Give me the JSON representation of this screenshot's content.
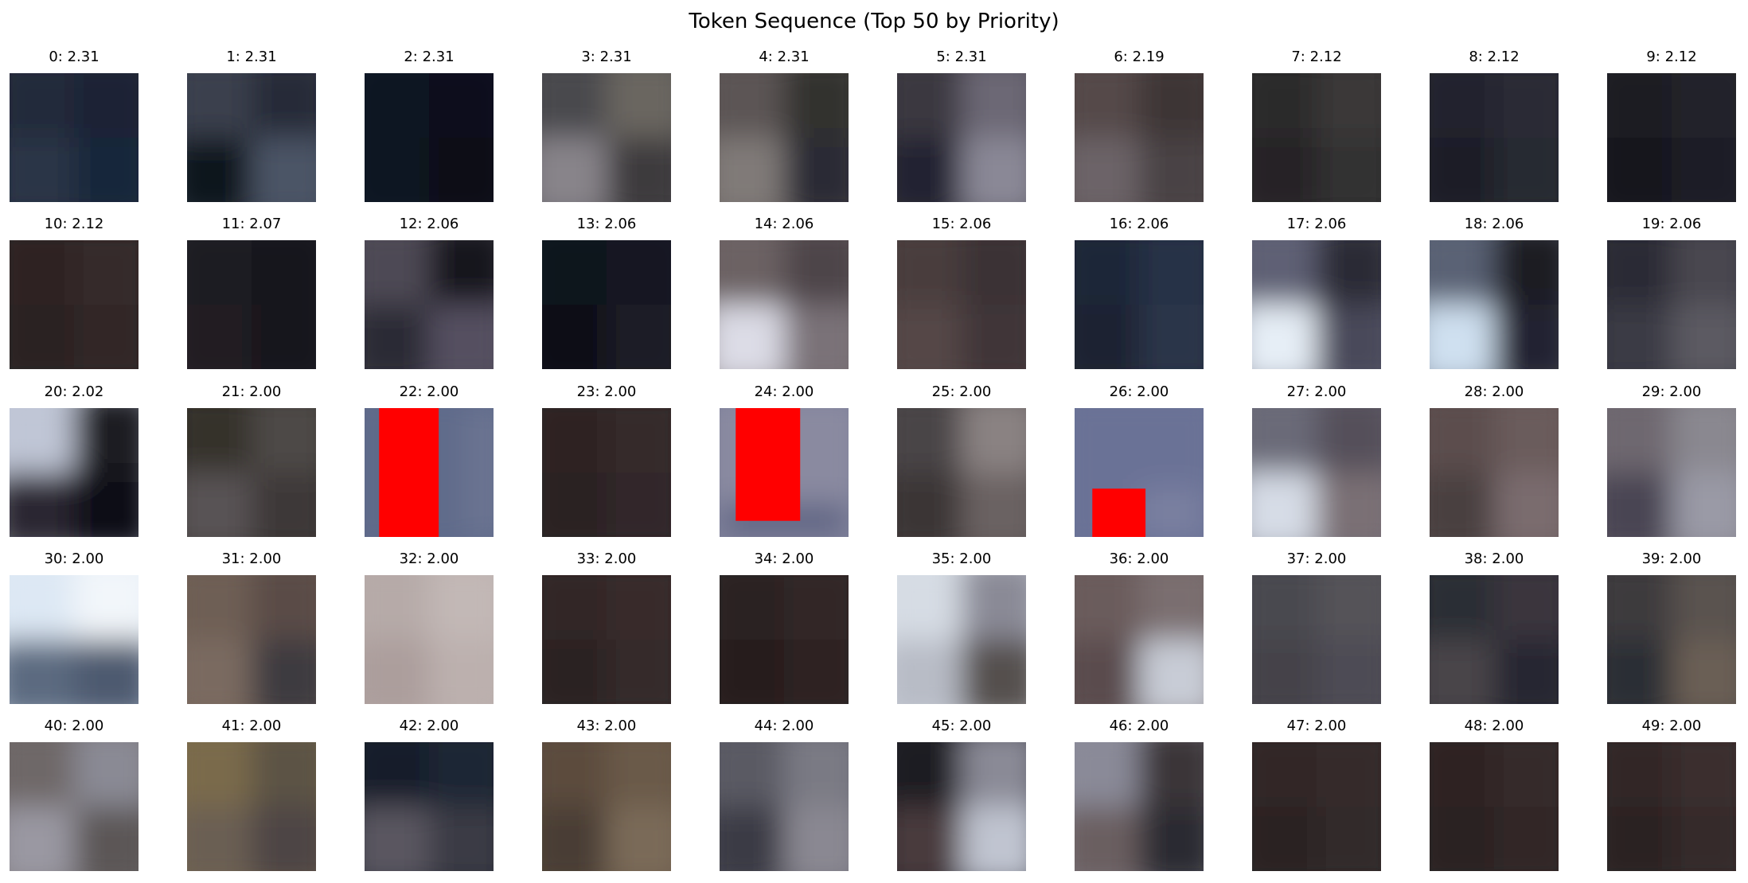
{
  "title": "Token Sequence (Top 50 by Priority)",
  "tokens": [
    {
      "label": "0: 2.31",
      "kind": "blur",
      "colors": [
        "#232a3a",
        "#1a2334",
        "#2c3446",
        "#19263a"
      ]
    },
    {
      "label": "1: 2.31",
      "kind": "blur",
      "colors": [
        "#3a3f4e",
        "#252a38",
        "#0f131c",
        "#4c5566"
      ]
    },
    {
      "label": "2: 2.31",
      "kind": "blur",
      "colors": [
        "#0f1320",
        "#0c101a",
        "#101524",
        "#0a0d16"
      ]
    },
    {
      "label": "3: 2.31",
      "kind": "blur",
      "colors": [
        "#4a4a4e",
        "#6a6660",
        "#88848a",
        "#3c3a3e"
      ]
    },
    {
      "label": "4: 2.31",
      "kind": "blur",
      "colors": [
        "#5c5454",
        "#32302f",
        "#807a78",
        "#2a2a34"
      ]
    },
    {
      "label": "5: 2.31",
      "kind": "blur",
      "colors": [
        "#3a3840",
        "#6c6874",
        "#202432",
        "#8a8896"
      ]
    },
    {
      "label": "6: 2.19",
      "kind": "blur",
      "colors": [
        "#54484a",
        "#3c3436",
        "#6c6468",
        "#4a4244"
      ]
    },
    {
      "label": "7: 2.12",
      "kind": "blur",
      "colors": [
        "#2c2a2c",
        "#3a3838",
        "#262426",
        "#333132"
      ]
    },
    {
      "label": "8: 2.12",
      "kind": "blur",
      "colors": [
        "#20242e",
        "#2c2c34",
        "#1c1e26",
        "#282a30"
      ]
    },
    {
      "label": "9: 2.12",
      "kind": "blur",
      "colors": [
        "#1a1a22",
        "#22202a",
        "#16161c",
        "#1e1e26"
      ]
    },
    {
      "label": "10: 2.12",
      "kind": "blur",
      "colors": [
        "#2e2424",
        "#34292a",
        "#2a2222",
        "#302627"
      ]
    },
    {
      "label": "11: 2.07",
      "kind": "blur",
      "colors": [
        "#1c1a22",
        "#14131a",
        "#221e24",
        "#19171e"
      ]
    },
    {
      "label": "12: 2.06",
      "kind": "blur",
      "colors": [
        "#4e4a54",
        "#12141e",
        "#2a2c36",
        "#545060"
      ]
    },
    {
      "label": "13: 2.06",
      "kind": "blur",
      "colors": [
        "#0e121c",
        "#161822",
        "#0a0d16",
        "#1c1e28"
      ]
    },
    {
      "label": "14: 2.06",
      "kind": "blur",
      "colors": [
        "#6c6264",
        "#4e4448",
        "#dcdce6",
        "#7a7278"
      ]
    },
    {
      "label": "15: 2.06",
      "kind": "blur",
      "colors": [
        "#4a3e3e",
        "#3a3236",
        "#544646",
        "#403638"
      ]
    },
    {
      "label": "16: 2.06",
      "kind": "blur",
      "colors": [
        "#1e2838",
        "#263246",
        "#1a2232",
        "#2c3648"
      ]
    },
    {
      "label": "17: 2.06",
      "kind": "blur",
      "colors": [
        "#5e6074",
        "#2c2a34",
        "#e6eef6",
        "#4a4a5a"
      ]
    },
    {
      "label": "18: 2.06",
      "kind": "blur",
      "colors": [
        "#5a6274",
        "#1e1c24",
        "#cfe0f0",
        "#242230"
      ]
    },
    {
      "label": "19: 2.06",
      "kind": "blur",
      "colors": [
        "#2a2c36",
        "#4a4650",
        "#3a3a44",
        "#5c5a62"
      ]
    },
    {
      "label": "20: 2.02",
      "kind": "blur",
      "colors": [
        "#c0c6d6",
        "#1c1a22",
        "#2a2830",
        "#101014"
      ]
    },
    {
      "label": "21: 2.00",
      "kind": "blur",
      "colors": [
        "#34302c",
        "#4e4a46",
        "#585254",
        "#3c3838"
      ]
    },
    {
      "label": "22: 2.00",
      "kind": "vstripe",
      "colors": [
        "#5f6a8a",
        "#ff0000",
        "#59627e",
        "#6b7391"
      ]
    },
    {
      "label": "23: 2.00",
      "kind": "blur",
      "colors": [
        "#2e2424",
        "#342a2a",
        "#2a2020",
        "#30282a"
      ]
    },
    {
      "label": "24: 2.00",
      "kind": "redblock",
      "colors": [
        "#6e7494",
        "#ff0000",
        "#8a8aa0",
        "#5c6282"
      ]
    },
    {
      "label": "25: 2.00",
      "kind": "blur",
      "colors": [
        "#4a4446",
        "#8a8282",
        "#3a3436",
        "#6a6262"
      ]
    },
    {
      "label": "26: 2.00",
      "kind": "redbottom",
      "colors": [
        "#6a7296",
        "#ff0000",
        "#5e6a8e",
        "#7a80a0"
      ]
    },
    {
      "label": "27: 2.00",
      "kind": "blur",
      "colors": [
        "#6a6a78",
        "#54505a",
        "#d6dce6",
        "#7a7074"
      ]
    },
    {
      "label": "28: 2.00",
      "kind": "blur",
      "colors": [
        "#5c4e4e",
        "#6a5c5c",
        "#4a4040",
        "#7a6c6e"
      ]
    },
    {
      "label": "29: 2.00",
      "kind": "blur",
      "colors": [
        "#6e6870",
        "#8a8890",
        "#4a4452",
        "#9a9aa6"
      ]
    },
    {
      "label": "30: 2.00",
      "kind": "blur",
      "colors": [
        "#dde8f4",
        "#f2f6fa",
        "#5c6a80",
        "#4e5a70"
      ]
    },
    {
      "label": "31: 2.00",
      "kind": "blur",
      "colors": [
        "#6e5e54",
        "#5a4c46",
        "#7a6a60",
        "#3c3a40"
      ]
    },
    {
      "label": "32: 2.00",
      "kind": "blur",
      "colors": [
        "#b6aaa8",
        "#c2b8b6",
        "#ac9e9c",
        "#bcb0ae"
      ]
    },
    {
      "label": "33: 2.00",
      "kind": "blur",
      "colors": [
        "#302626",
        "#382c2c",
        "#2a2222",
        "#34292a"
      ]
    },
    {
      "label": "34: 2.00",
      "kind": "blur",
      "colors": [
        "#2c2222",
        "#322828",
        "#281e1e",
        "#2e2424"
      ]
    },
    {
      "label": "35: 2.00",
      "kind": "blur",
      "colors": [
        "#d6dce4",
        "#8a8a96",
        "#b8bcc6",
        "#54504e"
      ]
    },
    {
      "label": "36: 2.00",
      "kind": "blur",
      "colors": [
        "#6a5c5c",
        "#7a6e70",
        "#5a4c4e",
        "#c8ccd6"
      ]
    },
    {
      "label": "37: 2.00",
      "kind": "blur",
      "colors": [
        "#4a4850",
        "#545258",
        "#44424a",
        "#4e4c54"
      ]
    },
    {
      "label": "38: 2.00",
      "kind": "blur",
      "colors": [
        "#2c2e36",
        "#3a363c",
        "#4a4448",
        "#262830"
      ]
    },
    {
      "label": "39: 2.00",
      "kind": "blur",
      "colors": [
        "#3c3a3e",
        "#5a5250",
        "#2c2e34",
        "#6a5e54"
      ]
    },
    {
      "label": "40: 2.00",
      "kind": "blur",
      "colors": [
        "#6e6868",
        "#8a8a94",
        "#9a98a2",
        "#5c5656"
      ]
    },
    {
      "label": "41: 2.00",
      "kind": "blur",
      "colors": [
        "#7a6a4c",
        "#5c5244",
        "#6a5e52",
        "#4e4444"
      ]
    },
    {
      "label": "42: 2.00",
      "kind": "blur",
      "colors": [
        "#141c2a",
        "#1e2636",
        "#5a5660",
        "#3a3a44"
      ]
    },
    {
      "label": "43: 2.00",
      "kind": "blur",
      "colors": [
        "#5c4c3e",
        "#6a5a48",
        "#4a3e34",
        "#7a6a58"
      ]
    },
    {
      "label": "44: 2.00",
      "kind": "blur",
      "colors": [
        "#5a5a64",
        "#7a7a84",
        "#3a3a44",
        "#8a8892"
      ]
    },
    {
      "label": "45: 2.00",
      "kind": "blur",
      "colors": [
        "#1a1a24",
        "#8a8a96",
        "#4a3a3e",
        "#c0c4d0"
      ]
    },
    {
      "label": "46: 2.00",
      "kind": "blur",
      "colors": [
        "#8a8a98",
        "#3a3438",
        "#6a5e60",
        "#2c2a30"
      ]
    },
    {
      "label": "47: 2.00",
      "kind": "blur",
      "colors": [
        "#302626",
        "#362c2c",
        "#2a2222",
        "#33292a"
      ]
    },
    {
      "label": "48: 2.00",
      "kind": "blur",
      "colors": [
        "#2e2424",
        "#342a2a",
        "#2a2020",
        "#302627"
      ]
    },
    {
      "label": "49: 2.00",
      "kind": "blur",
      "colors": [
        "#322828",
        "#3a2e2e",
        "#2c2222",
        "#362a2b"
      ]
    }
  ]
}
